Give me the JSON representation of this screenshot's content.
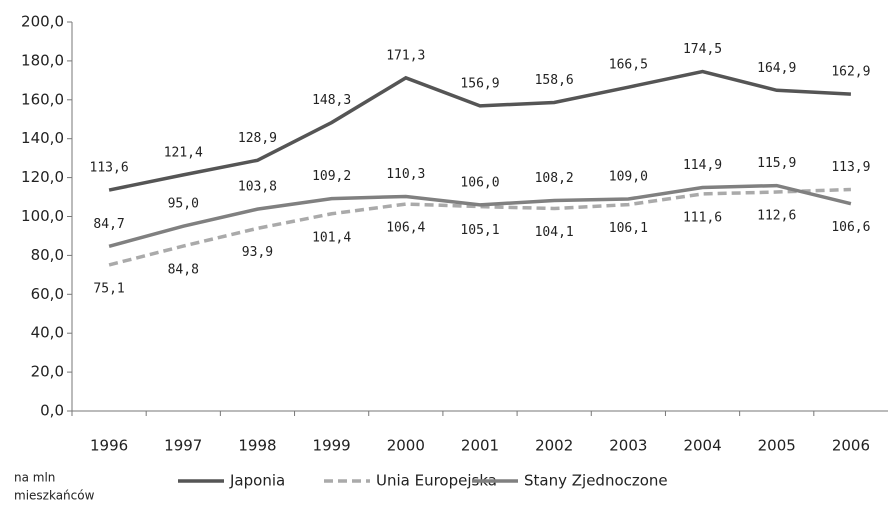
{
  "chart_data": {
    "type": "line",
    "categories": [
      "1996",
      "1997",
      "1998",
      "1999",
      "2000",
      "2001",
      "2002",
      "2003",
      "2004",
      "2005",
      "2006"
    ],
    "series": [
      {
        "name": "Japonia",
        "color": "#555555",
        "dash": false,
        "values": [
          113.6,
          121.4,
          128.9,
          148.3,
          171.3,
          156.9,
          158.6,
          166.5,
          174.5,
          164.9,
          162.9
        ],
        "value_labels": [
          "113,6",
          "121,4",
          "128,9",
          "148,3",
          "171,3",
          "156,9",
          "158,6",
          "166,5",
          "174,5",
          "164,9",
          "162,9"
        ]
      },
      {
        "name": "Unia Europejska",
        "color": "#aaaaaa",
        "dash": true,
        "values": [
          75.1,
          84.8,
          93.9,
          101.4,
          106.4,
          105.1,
          104.1,
          106.1,
          111.6,
          112.6,
          113.9
        ],
        "value_labels": [
          "75,1",
          "84,8",
          "93,9",
          "101,4",
          "106,4",
          "105,1",
          "104,1",
          "106,1",
          "111,6",
          "112,6",
          "113,9"
        ]
      },
      {
        "name": "Stany Zjednoczone",
        "color": "#808080",
        "dash": false,
        "values": [
          84.7,
          95.0,
          103.8,
          109.2,
          110.3,
          106.0,
          108.2,
          109.0,
          114.9,
          115.9,
          106.6
        ],
        "value_labels": [
          "84,7",
          "95,0",
          "103,8",
          "109,2",
          "110,3",
          "106,0",
          "108,2",
          "109,0",
          "114,9",
          "115,9",
          "106,6"
        ]
      }
    ],
    "ylim": [
      0,
      200
    ],
    "yticks": [
      {
        "value": 0,
        "label": "0,0"
      },
      {
        "value": 20,
        "label": "20,0"
      },
      {
        "value": 40,
        "label": "40,0"
      },
      {
        "value": 60,
        "label": "60,0"
      },
      {
        "value": 80,
        "label": "80,0"
      },
      {
        "value": 100,
        "label": "100,0"
      },
      {
        "value": 120,
        "label": "120,0"
      },
      {
        "value": 140,
        "label": "140,0"
      },
      {
        "value": 160,
        "label": "160,0"
      },
      {
        "value": 180,
        "label": "180,0"
      },
      {
        "value": 200,
        "label": "200,0"
      }
    ],
    "grid": false,
    "annotation": [
      "na mln",
      "mieszkańców"
    ]
  }
}
